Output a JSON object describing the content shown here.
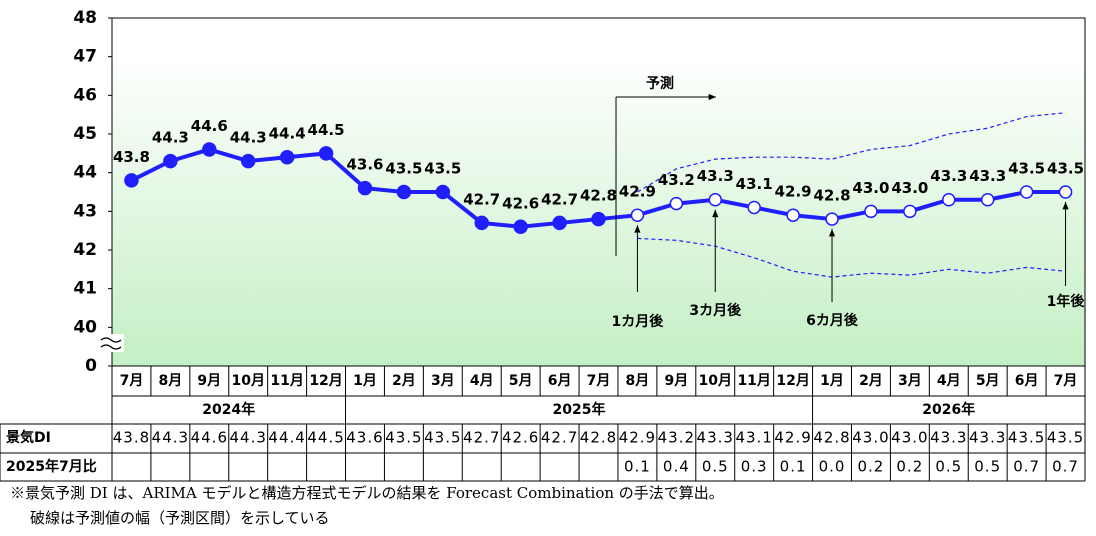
{
  "chart_data": {
    "type": "line",
    "categories": [
      "7月",
      "8月",
      "9月",
      "10月",
      "11月",
      "12月",
      "1月",
      "2月",
      "3月",
      "4月",
      "5月",
      "6月",
      "7月",
      "8月",
      "9月",
      "10月",
      "11月",
      "12月",
      "1月",
      "2月",
      "3月",
      "4月",
      "5月",
      "6月",
      "7月"
    ],
    "years": [
      "2024年",
      "2025年",
      "2026年"
    ],
    "year_spans": [
      6,
      12,
      7
    ],
    "ylim": [
      0,
      48
    ],
    "ybreak": [
      0,
      40
    ],
    "yticks": [
      0,
      40,
      41,
      42,
      43,
      44,
      45,
      46,
      47,
      48
    ],
    "forecast_start_index": 13,
    "series": [
      {
        "color": "#1f1fff",
        "values": [
          43.8,
          44.3,
          44.6,
          44.3,
          44.4,
          44.5,
          43.6,
          43.5,
          43.5,
          42.7,
          42.6,
          42.7,
          42.8,
          42.9,
          43.2,
          43.3,
          43.1,
          42.9,
          42.8,
          43.0,
          43.0,
          43.3,
          43.3,
          43.5,
          43.5
        ],
        "value_labels": [
          "43.8",
          "44.3",
          "44.6",
          "44.3",
          "44.4",
          "44.5",
          "43.6",
          "43.5",
          "43.5",
          "42.7",
          "42.6",
          "42.7",
          "42.8",
          "42.9",
          "43.2",
          "43.3",
          "43.1",
          "42.9",
          "42.8",
          "43.0",
          "43.0",
          "43.3",
          "43.3",
          "43.5",
          "43.5"
        ]
      },
      {
        "color": "#1f1fff",
        "dashed": true,
        "values": [
          null,
          null,
          null,
          null,
          null,
          null,
          null,
          null,
          null,
          null,
          null,
          null,
          null,
          43.5,
          44.1,
          44.35,
          44.4,
          44.4,
          44.35,
          44.6,
          44.7,
          45.0,
          45.15,
          45.45,
          45.55
        ]
      },
      {
        "color": "#1f1fff",
        "dashed": true,
        "values": [
          null,
          null,
          null,
          null,
          null,
          null,
          null,
          null,
          null,
          null,
          null,
          null,
          null,
          42.3,
          42.25,
          42.1,
          41.8,
          41.45,
          41.3,
          41.4,
          41.35,
          41.5,
          41.4,
          41.55,
          41.45
        ]
      }
    ],
    "annotations": {
      "forecast": "予測",
      "m1": "1カ月後",
      "m3": "3カ月後",
      "m6": "6カ月後",
      "y1": "1年後"
    },
    "table": {
      "row_labels": [
        "景気DI",
        "2025年7月比"
      ],
      "diff_labels": [
        null,
        null,
        null,
        null,
        null,
        null,
        null,
        null,
        null,
        null,
        null,
        null,
        null,
        "0.1",
        "0.4",
        "0.5",
        "0.3",
        "0.1",
        "0.0",
        "0.2",
        "0.2",
        "0.5",
        "0.5",
        "0.7",
        "0.7"
      ]
    },
    "footnote": [
      "※景気予測 DI は、ARIMA モデルと構造方程式モデルの結果を Forecast Combination の手法で算出。",
      "破線は予測値の幅（予測区間）を示している"
    ]
  }
}
